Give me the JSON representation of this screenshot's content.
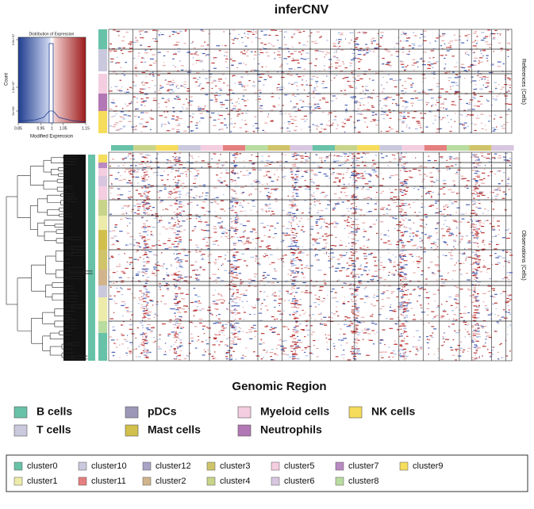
{
  "title": "inferCNV",
  "color_key": {
    "title": "Distribution of Expression",
    "ylabel": "Count",
    "xlabel": "Modified Expression",
    "xlim": [
      0.85,
      1.15
    ],
    "xticks": [
      0.85,
      0.95,
      1,
      1.05,
      1.15
    ],
    "ylim": [
      0,
      36000000
    ],
    "yticks": [
      {
        "value": 5000000,
        "label": "5e+06"
      },
      {
        "value": 15000000,
        "label": "1.5e+07"
      },
      {
        "value": 35000000,
        "label": "3.5e+07"
      }
    ]
  },
  "references_label": "References (Cells)",
  "observations_label": "Observations (Cells)",
  "xlabel": "Genomic Region",
  "cell_legend": [
    {
      "name": "B cells",
      "color": "#67c2a8"
    },
    {
      "name": "T cells",
      "color": "#c9c8dd"
    },
    {
      "name": "pDCs",
      "color": "#9d97b7"
    },
    {
      "name": "Mast cells",
      "color": "#d2c04c"
    },
    {
      "name": "Myeloid cells",
      "color": "#f4cde0"
    },
    {
      "name": "Neutrophils",
      "color": "#b277b5"
    },
    {
      "name": "NK cells",
      "color": "#f6dc5b"
    }
  ],
  "cluster_legend": [
    [
      {
        "name": "cluster0",
        "color": "#67c2a8"
      },
      {
        "name": "cluster10",
        "color": "#c9c8dd"
      },
      {
        "name": "cluster12",
        "color": "#a9a3c6"
      },
      {
        "name": "cluster3",
        "color": "#cfc46a"
      },
      {
        "name": "cluster5",
        "color": "#f4cde0"
      },
      {
        "name": "cluster7",
        "color": "#b98ac2"
      },
      {
        "name": "cluster9",
        "color": "#f5dd5e"
      }
    ],
    [
      {
        "name": "cluster1",
        "color": "#edeba9"
      },
      {
        "name": "cluster11",
        "color": "#e57f7f"
      },
      {
        "name": "cluster2",
        "color": "#d1b48c"
      },
      {
        "name": "cluster4",
        "color": "#c7d48a"
      },
      {
        "name": "cluster6",
        "color": "#d8c6e0"
      },
      {
        "name": "cluster8",
        "color": "#b9dca0"
      }
    ]
  ]
}
